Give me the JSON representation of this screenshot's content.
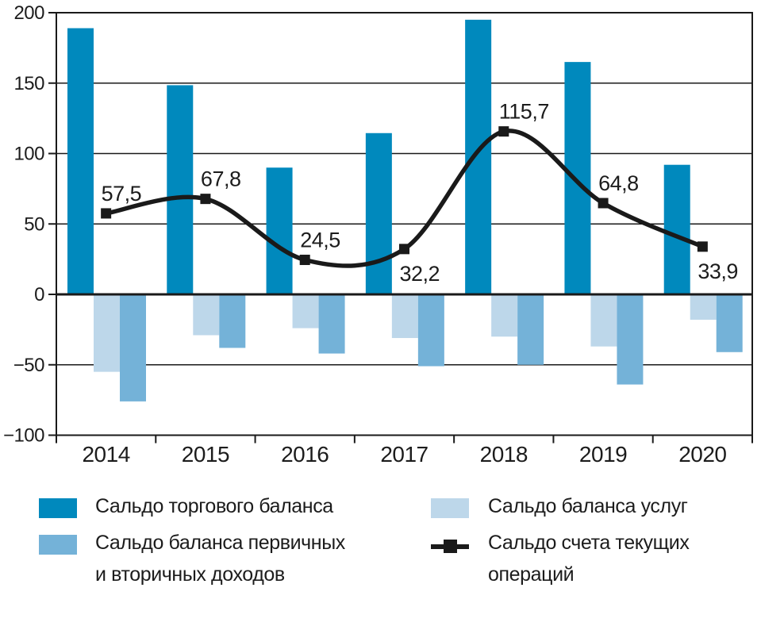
{
  "page": {
    "background": "#FFFFFF",
    "text_color": "#1C1C1C"
  },
  "chart_data": {
    "type": "bar",
    "subtype": "combo_bar_line",
    "title": "",
    "xlabel": "",
    "ylabel": "",
    "categories": [
      "2014",
      "2015",
      "2016",
      "2017",
      "2018",
      "2019",
      "2020"
    ],
    "bar_series": [
      {
        "name": "Сальдо торгового баланса",
        "color": "#0089BD",
        "values": [
          189,
          148.5,
          90,
          114.5,
          195,
          165,
          92
        ]
      },
      {
        "name": "Сальдо баланса услуг",
        "color": "#BDD7EA",
        "values": [
          -55,
          -29,
          -24,
          -31,
          -30,
          -37,
          -18
        ]
      },
      {
        "name": "Сальдо баланса первичных и вторичных доходов",
        "color": "#74B2D8",
        "values": [
          -76,
          -38,
          -42,
          -51,
          -50,
          -64,
          -41
        ]
      }
    ],
    "line_series": {
      "name": "Сальдо счета текущих операций",
      "color": "#1A1A1A",
      "marker": "square",
      "values": [
        57.5,
        67.8,
        24.5,
        32.2,
        115.7,
        64.8,
        33.9
      ],
      "point_labels": [
        "57,5",
        "67,8",
        "24,5",
        "32,2",
        "115,7",
        "64,8",
        "33,9"
      ],
      "label_side": [
        "above",
        "above",
        "above",
        "below",
        "above",
        "above",
        "below"
      ]
    },
    "y_axis": {
      "min": -100,
      "max": 200,
      "ticks": [
        200,
        150,
        100,
        50,
        0,
        -50,
        -100
      ],
      "tick_labels": [
        "200",
        "150",
        "100",
        "50",
        "0",
        "−50",
        "−100"
      ]
    },
    "grid": "horizontal",
    "legend_position": "bottom"
  },
  "legend": {
    "left_column": [
      {
        "swatch_color": "#0089BD",
        "label": "Сальдо торгового баланса"
      },
      {
        "swatch_color": "#74B2D8",
        "label": "Сальдо баланса первичных\nи вторичных доходов"
      }
    ],
    "right_column": [
      {
        "swatch_color": "#BDD7EA",
        "label": "Сальдо баланса услуг"
      },
      {
        "marker": "line-square",
        "marker_color": "#1A1A1A",
        "label": "Сальдо счета текущих\nопераций"
      }
    ]
  }
}
